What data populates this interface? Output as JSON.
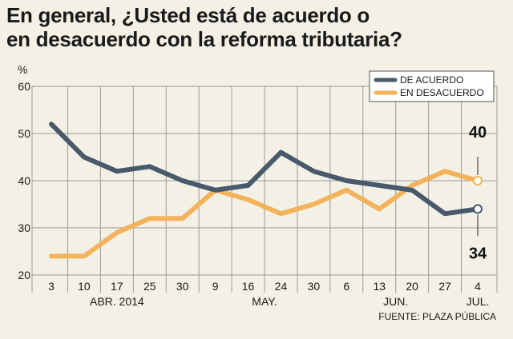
{
  "title_lines": [
    "En general, ¿Usted está de acuerdo o",
    "en desacuerdo con la reforma tributaria?"
  ],
  "source": "FUENTE: PLAZA PÚBLICA",
  "colors": {
    "acuerdo": "#47596b",
    "desacuerdo": "#f2b35a",
    "grid": "#9a9a9a",
    "background": "#f3f0e6"
  },
  "chart_data": {
    "type": "line",
    "title": "En general, ¿Usted está de acuerdo o en desacuerdo con la reforma tributaria?",
    "ylabel": "%",
    "xlabel": "",
    "ylim": [
      20,
      60
    ],
    "yticks": [
      "20",
      "30",
      "40",
      "50",
      "60"
    ],
    "categories": [
      "3",
      "10",
      "17",
      "25",
      "30",
      "9",
      "16",
      "24",
      "30",
      "6",
      "13",
      "20",
      "27",
      "4"
    ],
    "months": [
      {
        "label": "ABR. 2014",
        "start": 0,
        "end": 4
      },
      {
        "label": "MAY.",
        "start": 5,
        "end": 8
      },
      {
        "label": "JUN.",
        "start": 9,
        "end": 12
      },
      {
        "label": "JUL.",
        "start": 13,
        "end": 13
      }
    ],
    "series": [
      {
        "name": "DE ACUERDO",
        "values": [
          52,
          45,
          42,
          43,
          40,
          38,
          39,
          46,
          42,
          40,
          39,
          38,
          33,
          34
        ],
        "end_label": "34"
      },
      {
        "name": "EN DESACUERDO",
        "values": [
          24,
          24,
          29,
          32,
          32,
          38,
          36,
          33,
          35,
          38,
          34,
          39,
          42,
          40
        ],
        "end_label": "40"
      }
    ],
    "grid": true,
    "legend_position": "top-right"
  }
}
